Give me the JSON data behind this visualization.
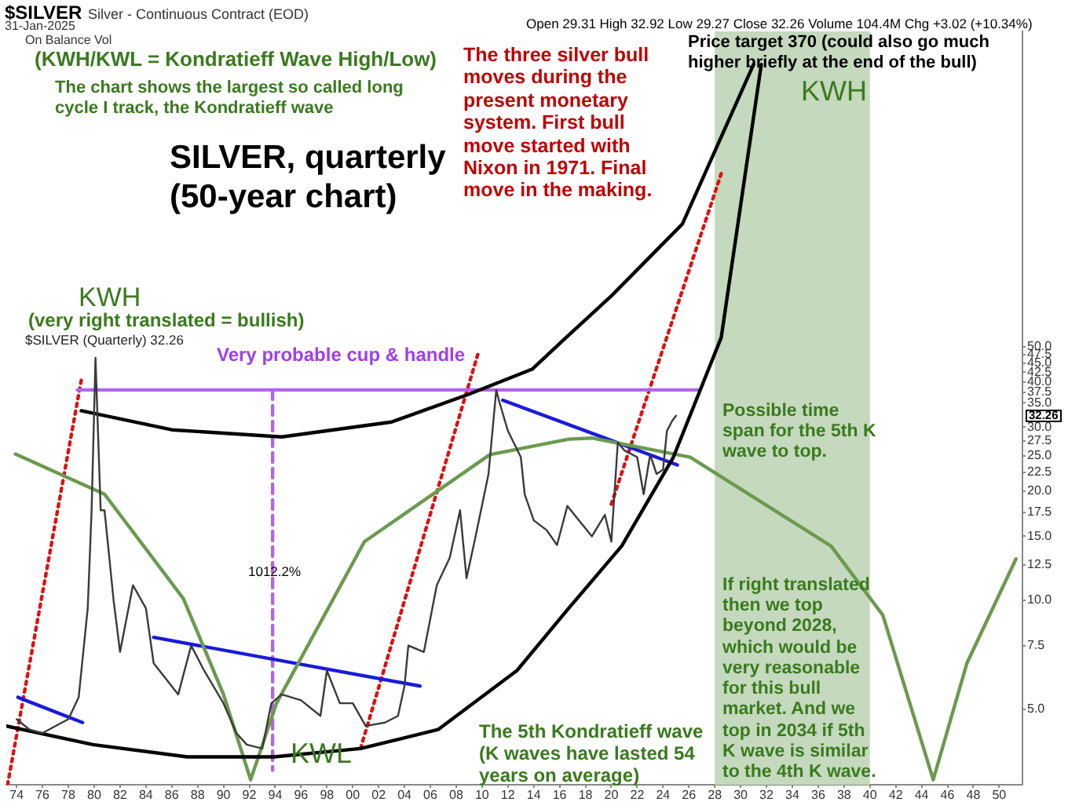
{
  "chart_data": {
    "type": "line",
    "title": "SILVER, quarterly (50-year chart)",
    "annotations": [
      "$SILVER",
      "Silver - Continuous Contract (EOD)",
      "31-Jan-2025",
      "Open 29.31 High 32.92 Low 29.27 Close 32.26 Volume 104.4M Chg +3.02 (+10.34%)",
      "On Balance Vol",
      "(KWH/KWL = Kondratieff Wave High/Low)",
      "The chart shows the largest so called long cycle I track, the Kondratieff wave",
      "KWH",
      "(very right translated = bullish)",
      "The three silver bull moves during the present monetary system. First bull move started with Nixon in 1971. Final move in the making.",
      "Price target 370 (could also go much higher briefly at the end of the bull)",
      "KWH",
      "Very probable cup & handle",
      "1012.2%",
      "KWL",
      "The 5th Kondratieff wave (K waves have lasted 54 years on average)",
      "Possible time span for the 5th K wave to top.",
      "If right translated then we top beyond 2028, which would be very reasonable for this bull market. And we top in 2034 if 5th K wave is similar to the 4th K wave.",
      "32.26"
    ],
    "log": "y",
    "xlim": [
      1973.2,
      2051.8
    ],
    "ylim": [
      3.1,
      370
    ],
    "xticks": [
      {
        "value": 1974,
        "label": "74"
      },
      {
        "value": 1976,
        "label": "76"
      },
      {
        "value": 1978,
        "label": "78"
      },
      {
        "value": 1980,
        "label": "80"
      },
      {
        "value": 1982,
        "label": "82"
      },
      {
        "value": 1984,
        "label": "84"
      },
      {
        "value": 1986,
        "label": "86"
      },
      {
        "value": 1988,
        "label": "88"
      },
      {
        "value": 1990,
        "label": "90"
      },
      {
        "value": 1992,
        "label": "92"
      },
      {
        "value": 1994,
        "label": "94"
      },
      {
        "value": 1996,
        "label": "96"
      },
      {
        "value": 1998,
        "label": "98"
      },
      {
        "value": 2000,
        "label": "00"
      },
      {
        "value": 2002,
        "label": "02"
      },
      {
        "value": 2004,
        "label": "04"
      },
      {
        "value": 2006,
        "label": "06"
      },
      {
        "value": 2008,
        "label": "08"
      },
      {
        "value": 2010,
        "label": "10"
      },
      {
        "value": 2012,
        "label": "12"
      },
      {
        "value": 2014,
        "label": "14"
      },
      {
        "value": 2016,
        "label": "16"
      },
      {
        "value": 2018,
        "label": "18"
      },
      {
        "value": 2020,
        "label": "20"
      },
      {
        "value": 2022,
        "label": "22"
      },
      {
        "value": 2024,
        "label": "24"
      },
      {
        "value": 2026,
        "label": "26"
      },
      {
        "value": 2028,
        "label": "28"
      },
      {
        "value": 2030,
        "label": "30"
      },
      {
        "value": 2032,
        "label": "32"
      },
      {
        "value": 2034,
        "label": "34"
      },
      {
        "value": 2036,
        "label": "36"
      },
      {
        "value": 2038,
        "label": "38"
      },
      {
        "value": 2040,
        "label": "40"
      },
      {
        "value": 2042,
        "label": "42"
      },
      {
        "value": 2044,
        "label": "44"
      },
      {
        "value": 2046,
        "label": "46"
      },
      {
        "value": 2048,
        "label": "48"
      },
      {
        "value": 2050,
        "label": "50"
      }
    ],
    "yticks": [
      {
        "value": 5,
        "label": "5.0"
      },
      {
        "value": 7.5,
        "label": "7.5"
      },
      {
        "value": 10,
        "label": "10.0"
      },
      {
        "value": 12.5,
        "label": "12.5"
      },
      {
        "value": 15,
        "label": "15.0"
      },
      {
        "value": 17.5,
        "label": "17.5"
      },
      {
        "value": 20,
        "label": "20.0"
      },
      {
        "value": 22.5,
        "label": "22.5"
      },
      {
        "value": 25,
        "label": "25.0"
      },
      {
        "value": 27.5,
        "label": "27.5"
      },
      {
        "value": 30,
        "label": "30.0"
      },
      {
        "value": 35,
        "label": "35.0"
      },
      {
        "value": 37.5,
        "label": "37.5"
      },
      {
        "value": 40,
        "label": "40.0"
      },
      {
        "value": 42.5,
        "label": "42.5"
      },
      {
        "value": 45,
        "label": "45.0"
      },
      {
        "value": 47.5,
        "label": "47.5"
      },
      {
        "value": 50,
        "label": "50.0"
      }
    ],
    "bands": [
      {
        "axis": "x",
        "from": 2028,
        "to": 2040,
        "color": "#c4d9bd"
      }
    ],
    "series": [
      {
        "name": "$SILVER (Quarterly) 32.26",
        "color": "#3a3a3a",
        "x": [
          1974,
          1975,
          1976,
          1977,
          1978,
          1978.8,
          1979.5,
          1979.8,
          1980.1,
          1980.5,
          1980.8,
          1981.5,
          1982,
          1983,
          1984,
          1984.6,
          1985.5,
          1986.5,
          1987.5,
          1988.5,
          1990,
          1991,
          1991.8,
          1993,
          1993.7,
          1994.5,
          1996,
          1997.5,
          1998,
          1999,
          2000,
          2001,
          2002.5,
          2003.5,
          2004,
          2004.3,
          2005.5,
          2006.5,
          2007.5,
          2008.3,
          2008.8,
          2009.5,
          2010.5,
          2011.1,
          2011.3,
          2012,
          2013,
          2013.3,
          2014,
          2015,
          2015.8,
          2016.6,
          2017.5,
          2018.5,
          2019.5,
          2020,
          2020.5,
          2021,
          2022,
          2022.5,
          2023,
          2023.5,
          2024,
          2024.3,
          2024.7,
          2025
        ],
        "values": [
          4.7,
          4.4,
          4.3,
          4.5,
          4.7,
          5.4,
          9.5,
          17.7,
          46.6,
          17.7,
          17.7,
          10,
          7.2,
          11,
          9.5,
          6.7,
          6.1,
          5.5,
          7.5,
          6.4,
          5.2,
          4.3,
          4,
          3.9,
          5.2,
          5.5,
          5.3,
          4.8,
          6.4,
          5.2,
          5.2,
          4.5,
          4.6,
          4.8,
          5.8,
          7.5,
          7.2,
          11,
          13.1,
          17.7,
          11.5,
          15,
          22.3,
          38,
          35.6,
          29.3,
          24.8,
          19.6,
          16.6,
          15.6,
          14.2,
          18.2,
          16.6,
          15,
          17.2,
          14.5,
          27.2,
          25.9,
          24.8,
          19.6,
          25.2,
          22.3,
          22.9,
          29.3,
          31.2,
          32.26
        ]
      },
      {
        "type": "line",
        "color": "#000000",
        "x": [
          1973.2,
          1979.9,
          1987.2,
          1993.9,
          2000.6,
          2006.6,
          2012.7,
          2016.7,
          2020.8,
          2024.8,
          2028.5,
          2031.6
        ],
        "values": [
          4.5,
          4,
          3.7,
          3.7,
          3.9,
          4.4,
          6.4,
          9.5,
          14.1,
          24.8,
          53,
          300
        ]
      },
      {
        "type": "line",
        "color": "#000000",
        "x": [
          1979,
          1986,
          1994.5,
          2003,
          2009,
          2013.9,
          2016.5,
          2020,
          2025.5,
          2031
        ],
        "values": [
          33.3,
          29.5,
          28.2,
          31,
          37,
          43.4,
          53,
          69,
          109,
          300
        ]
      },
      {
        "type": "line",
        "color": "#6b9a4e",
        "x": [
          1973.9,
          1980.8,
          1986.9,
          1990,
          1992.1,
          1994.1,
          2000.9,
          2010.6,
          2016.7,
          2018.5,
          2026.1,
          2037,
          2041,
          2044.9,
          2047.5,
          2051.3
        ],
        "values": [
          25.3,
          19.6,
          10.1,
          5.5,
          3.2,
          5.2,
          14.5,
          25.2,
          27.8,
          28,
          24.8,
          14.1,
          9.1,
          3.2,
          6.7,
          13
        ]
      },
      {
        "type": "line",
        "color": "#1a1adb",
        "x": [
          1974.1,
          1979.1
        ],
        "values": [
          5.4,
          4.6
        ]
      },
      {
        "type": "line",
        "color": "#1a1adb",
        "x": [
          1984.6,
          2005.2
        ],
        "values": [
          7.9,
          5.8
        ]
      },
      {
        "type": "line",
        "color": "#1a1adb",
        "x": [
          2011.6,
          2025.1
        ],
        "values": [
          35.6,
          23.6
        ]
      },
      {
        "type": "line",
        "color": "#b266e0",
        "x": [
          1978.7,
          2026.7
        ],
        "values": [
          38,
          38
        ]
      },
      {
        "type": "line",
        "color": "#b266e0",
        "line_style": "dashed",
        "x": [
          1993.8,
          1993.8
        ],
        "values": [
          38,
          3.4
        ]
      },
      {
        "type": "line",
        "color": "#dd1111",
        "line_style": "dotted",
        "x": [
          1973.3,
          1979
        ],
        "values": [
          3.1,
          40.4
        ]
      },
      {
        "type": "line",
        "color": "#dd1111",
        "line_style": "dotted",
        "x": [
          2000.6,
          2009.7
        ],
        "values": [
          3.9,
          48
        ]
      },
      {
        "type": "line",
        "color": "#dd1111",
        "line_style": "dotted",
        "x": [
          2020,
          2028.5
        ],
        "values": [
          18.4,
          150
        ]
      }
    ]
  }
}
